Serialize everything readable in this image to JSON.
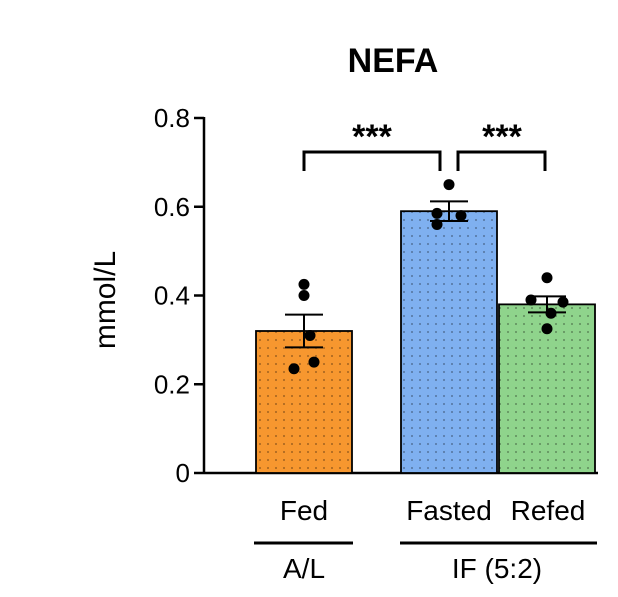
{
  "chart_data": {
    "type": "bar",
    "title": "NEFA",
    "xlabel": "",
    "ylabel": "mmol/L",
    "ylim": [
      0,
      0.8
    ],
    "yticks": [
      "0",
      "0.2",
      "0.4",
      "0.6",
      "0.8"
    ],
    "categories": [
      "Fed",
      "Fasted",
      "Refed"
    ],
    "values": [
      0.32,
      0.59,
      0.38
    ],
    "errors": [
      0.037,
      0.022,
      0.018
    ],
    "colors": [
      "#f7972f",
      "#7fb0f0",
      "#8fd48c"
    ],
    "points": [
      [
        0.425,
        0.4,
        0.31,
        0.25,
        0.235
      ],
      [
        0.65,
        0.585,
        0.58,
        0.56
      ],
      [
        0.44,
        0.39,
        0.385,
        0.36,
        0.325
      ]
    ],
    "groups": [
      {
        "label": "A/L",
        "categories": [
          "Fed"
        ]
      },
      {
        "label": "IF (5:2)",
        "categories": [
          "Fasted",
          "Refed"
        ]
      }
    ],
    "significance": [
      {
        "from": "Fed",
        "to": "Fasted",
        "label": "***"
      },
      {
        "from": "Fasted",
        "to": "Refed",
        "label": "***"
      }
    ]
  }
}
